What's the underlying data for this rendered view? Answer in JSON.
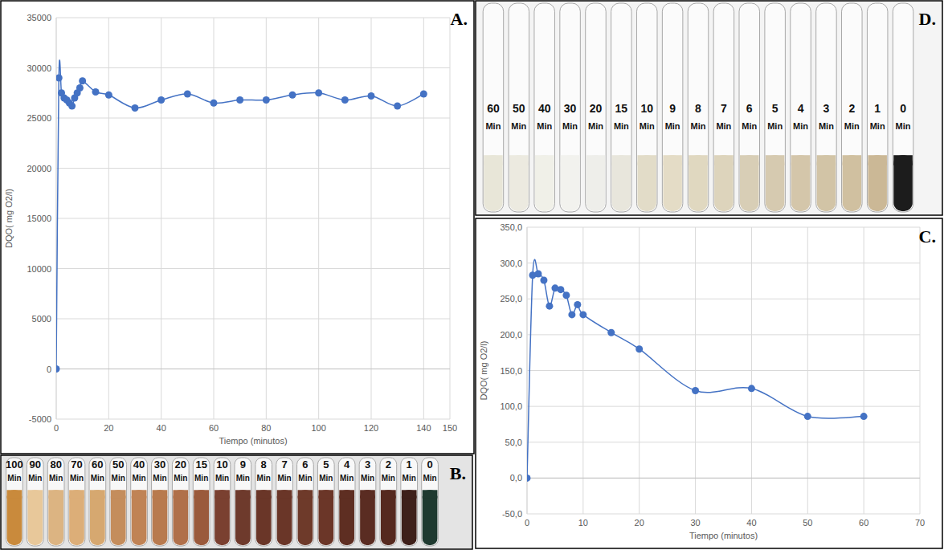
{
  "chart_data": [
    {
      "type": "line",
      "title": "A.",
      "x_label": "Tiempo (minutos)",
      "y_label": "DQO( mg O2/l)",
      "x": [
        0,
        1,
        2,
        3,
        4,
        5,
        6,
        7,
        8,
        9,
        10,
        15,
        20,
        30,
        40,
        50,
        60,
        70,
        80,
        90,
        100,
        110,
        120,
        130,
        140
      ],
      "values": [
        0,
        29000,
        27500,
        27000,
        26800,
        26500,
        26200,
        27000,
        27500,
        28000,
        28700,
        27600,
        27300,
        26000,
        26800,
        27400,
        26500,
        26800,
        26800,
        27300,
        27500,
        26800,
        27200,
        26200,
        27400
      ],
      "color": "#4472c4",
      "marker": "circle",
      "line_style": "smooth",
      "xlim": [
        0,
        150
      ],
      "ylim": [
        -5000,
        35000
      ],
      "xticks": [
        0,
        20,
        40,
        60,
        80,
        100,
        120,
        140,
        150
      ],
      "yticks": [
        -5000,
        0,
        5000,
        10000,
        15000,
        20000,
        25000,
        30000,
        35000
      ],
      "grid": true
    },
    {
      "type": "photo",
      "title": "B.",
      "categories": [
        "100 Min",
        "90 Min",
        "80 Min",
        "70 Min",
        "60 Min",
        "50 Min",
        "40 Min",
        "30 Min",
        "20 Min",
        "15 Min",
        "10 Min",
        "9 Min",
        "8 Min",
        "7 Min",
        "6 Min",
        "5 Min",
        "4 Min",
        "3 Min",
        "2 Min",
        "1 Min",
        "0 Min"
      ],
      "colors": [
        "#c98a3c",
        "#e8c89a",
        "#dcb482",
        "#dcae78",
        "#d6a870",
        "#c48d5c",
        "#c08355",
        "#b87a4e",
        "#b0704a",
        "#9a5a3c",
        "#7a4030",
        "#6e3a2c",
        "#6a3628",
        "#6a3628",
        "#6e3a2a",
        "#6b3628",
        "#5e2e22",
        "#5a2c22",
        "#55291f",
        "#3e201a",
        "#1f3a30"
      ]
    },
    {
      "type": "line",
      "title": "C.",
      "x_label": "Tiempo (minutos)",
      "y_label": "DQO( mg O2/l)",
      "x": [
        0,
        1,
        2,
        3,
        4,
        5,
        6,
        7,
        8,
        9,
        10,
        15,
        20,
        30,
        40,
        50,
        60
      ],
      "values": [
        0,
        283,
        285,
        276,
        240,
        265,
        263,
        255,
        228,
        242,
        228,
        203,
        180,
        122,
        125,
        86,
        86
      ],
      "color": "#4472c4",
      "marker": "circle",
      "line_style": "smooth",
      "xlim": [
        0,
        70
      ],
      "ylim": [
        -50,
        350
      ],
      "xticks": [
        0,
        10,
        20,
        30,
        40,
        50,
        60,
        70
      ],
      "yticks": [
        {
          "value": -50,
          "label": "-50,0"
        },
        {
          "value": 0,
          "label": "0,0"
        },
        {
          "value": 50,
          "label": "50,0"
        },
        {
          "value": 100,
          "label": "100,0"
        },
        {
          "value": 150,
          "label": "150,0"
        },
        {
          "value": 200,
          "label": "200,0"
        },
        {
          "value": 250,
          "label": "250,0"
        },
        {
          "value": 300,
          "label": "300,0"
        },
        {
          "value": 350,
          "label": "350,0"
        }
      ],
      "grid": true
    },
    {
      "type": "photo",
      "title": "D.",
      "categories": [
        "60 Min",
        "50 Min",
        "40 Min",
        "30 Min",
        "20 Min",
        "15 Min",
        "10 Min",
        "9 Min",
        "8 Min",
        "7 Min",
        "6 Min",
        "5 Min",
        "4 Min",
        "3 Min",
        "2 Min",
        "1 Min",
        "0 Min"
      ],
      "colors": [
        "#e8e6d8",
        "#eceae0",
        "#f0f0e8",
        "#f2f2ee",
        "#eeeeea",
        "#e8e6dc",
        "#e2dcc8",
        "#e4dcc6",
        "#e0d8c0",
        "#ddd4bc",
        "#d8ceb6",
        "#d6cab0",
        "#d4c6aa",
        "#d2c4a6",
        "#d0c0a0",
        "#cbb896",
        "#1c1c1c"
      ]
    }
  ]
}
